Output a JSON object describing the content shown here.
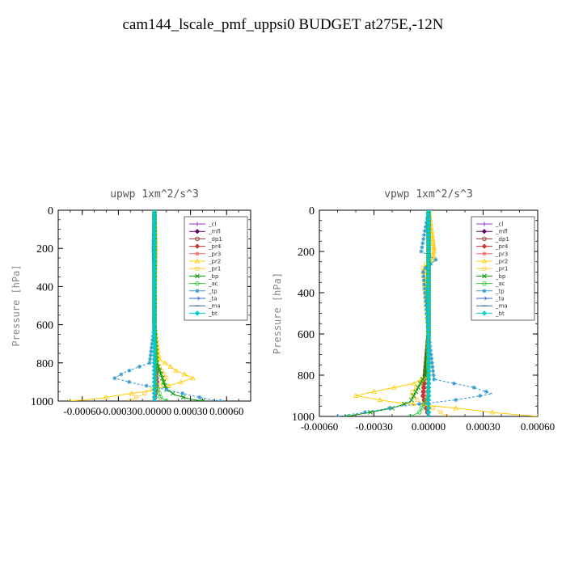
{
  "page": {
    "title": "cam144_lscale_pmf_uppsi0  BUDGET at275E,-12N"
  },
  "chart_data": [
    {
      "type": "line",
      "title": "upwp   1xm^2/s^3",
      "ylabel": "Pressure [hPa]",
      "xlabel": "",
      "xlim": [
        -0.0008,
        0.0008
      ],
      "ylim": [
        1000,
        0
      ],
      "x_ticks": [
        -0.0006,
        -0.0003,
        0.0,
        0.0003,
        0.0006
      ],
      "x_tick_labels": [
        "-0.00060",
        "-0.00030",
        "0.00000",
        "0.00030",
        "0.00060"
      ],
      "y_ticks": [
        0,
        200,
        400,
        600,
        800,
        1000
      ],
      "y_tick_labels": [
        "0",
        "200",
        "400",
        "600",
        "800",
        "1000"
      ],
      "legend_position": "top-right",
      "series": [
        {
          "name": "_cl",
          "color": "#9933cc",
          "marker": "plus",
          "x": [
            0,
            0,
            0,
            0,
            0,
            0,
            0
          ],
          "y": [
            0,
            200,
            400,
            600,
            800,
            900,
            1000
          ]
        },
        {
          "name": "_mfl",
          "color": "#660066",
          "marker": "diamond",
          "x": [
            0,
            0,
            0,
            0,
            0,
            0,
            0
          ],
          "y": [
            0,
            200,
            400,
            600,
            800,
            900,
            1000
          ]
        },
        {
          "name": "_dp1",
          "color": "#993333",
          "marker": "circle",
          "x": [
            0,
            0,
            0,
            0,
            1e-05,
            2e-05,
            0
          ],
          "y": [
            0,
            200,
            400,
            600,
            800,
            900,
            1000
          ]
        },
        {
          "name": "_pr4",
          "color": "#cc3333",
          "marker": "diamond",
          "x": [
            0,
            0,
            0,
            0,
            1e-05,
            2e-05,
            0
          ],
          "y": [
            0,
            200,
            400,
            600,
            800,
            900,
            1000
          ]
        },
        {
          "name": "_pr3",
          "color": "#ff6666",
          "marker": "star",
          "x": [
            0,
            0,
            0,
            0,
            0,
            1e-05,
            0
          ],
          "y": [
            0,
            200,
            400,
            600,
            800,
            900,
            1000
          ]
        },
        {
          "name": "_pr2",
          "color": "#ffcc00",
          "marker": "triangle",
          "x": [
            0,
            1e-05,
            1e-05,
            0,
            4e-05,
            0.00018,
            0.00032,
            0.00012,
            -8e-05,
            -0.0003,
            -0.00045,
            -0.0006,
            -0.0007
          ],
          "y": [
            0,
            180,
            220,
            600,
            780,
            840,
            880,
            920,
            950,
            970,
            985,
            995,
            1000
          ]
        },
        {
          "name": "_pr1",
          "color": "#ffcc33",
          "marker": "square",
          "x": [
            0,
            1e-05,
            0,
            0,
            2e-05,
            0.0001,
            5e-05,
            -5e-05,
            -0.00015,
            -0.0002
          ],
          "y": [
            0,
            200,
            400,
            600,
            800,
            880,
            920,
            950,
            980,
            1000
          ],
          "dashed": true
        },
        {
          "name": "_bp",
          "color": "#009900",
          "marker": "x",
          "x": [
            0,
            0,
            0,
            0,
            2e-05,
            0.0001,
            0.00018,
            0.0003,
            0.0004
          ],
          "y": [
            0,
            200,
            400,
            600,
            800,
            940,
            970,
            990,
            1000
          ]
        },
        {
          "name": "_ac",
          "color": "#33cc33",
          "marker": "circle",
          "x": [
            0,
            0,
            0,
            0,
            1e-05,
            5e-05,
            0.0001
          ],
          "y": [
            0,
            200,
            400,
            600,
            900,
            980,
            1000
          ]
        },
        {
          "name": "_tp",
          "color": "#3399cc",
          "marker": "star",
          "x": [
            0,
            -1e-05,
            0,
            0,
            -4e-05,
            -0.00025,
            -0.00033,
            -0.00015,
            0.0001,
            0.0003,
            0.00045,
            0.00055
          ],
          "y": [
            0,
            200,
            400,
            600,
            800,
            850,
            880,
            910,
            940,
            970,
            990,
            1000
          ],
          "dashed": true
        },
        {
          "name": "_ta",
          "color": "#3366cc",
          "marker": "arrow",
          "x": [
            0,
            0,
            0,
            0,
            0,
            0,
            0
          ],
          "y": [
            0,
            200,
            400,
            600,
            800,
            900,
            1000
          ]
        },
        {
          "name": "_ma",
          "color": "#336699",
          "marker": "dash",
          "x": [
            0,
            0,
            0,
            0,
            0,
            0,
            0
          ],
          "y": [
            0,
            200,
            400,
            600,
            800,
            900,
            1000
          ]
        },
        {
          "name": "_bt",
          "color": "#00cccc",
          "marker": "diamond",
          "x": [
            0,
            0,
            0,
            0,
            0,
            0,
            0
          ],
          "y": [
            0,
            200,
            400,
            600,
            800,
            900,
            1000
          ]
        }
      ]
    },
    {
      "type": "line",
      "title": "vpwp   1xm^2/s^3",
      "ylabel": "Pressure [hPa]",
      "xlabel": "",
      "xlim": [
        -0.0006,
        0.0006
      ],
      "ylim": [
        1000,
        0
      ],
      "x_ticks": [
        -0.0006,
        -0.0003,
        0.0,
        0.0003,
        0.0006
      ],
      "x_tick_labels": [
        "-0.00060",
        "-0.00030",
        "0.00000",
        "0.00030",
        "0.00060"
      ],
      "y_ticks": [
        0,
        200,
        400,
        600,
        800,
        1000
      ],
      "y_tick_labels": [
        "0",
        "200",
        "400",
        "600",
        "800",
        "1000"
      ],
      "legend_position": "top-right",
      "series": [
        {
          "name": "_cl",
          "color": "#9933cc",
          "marker": "plus",
          "x": [
            0,
            0,
            0,
            0,
            0,
            0,
            0
          ],
          "y": [
            0,
            200,
            400,
            600,
            800,
            900,
            1000
          ]
        },
        {
          "name": "_mfl",
          "color": "#660066",
          "marker": "diamond",
          "x": [
            0,
            0,
            0,
            0,
            0,
            0,
            0
          ],
          "y": [
            0,
            200,
            400,
            600,
            800,
            900,
            1000
          ]
        },
        {
          "name": "_dp1",
          "color": "#993333",
          "marker": "circle",
          "x": [
            0,
            0,
            0,
            0,
            -2e-05,
            -3e-05,
            0
          ],
          "y": [
            0,
            200,
            400,
            600,
            800,
            900,
            1000
          ]
        },
        {
          "name": "_pr4",
          "color": "#cc3333",
          "marker": "diamond",
          "x": [
            0,
            0,
            0,
            0,
            -2e-05,
            -3e-05,
            0
          ],
          "y": [
            0,
            200,
            400,
            600,
            800,
            900,
            1000
          ]
        },
        {
          "name": "_pr3",
          "color": "#ff6666",
          "marker": "star",
          "x": [
            0,
            0,
            0,
            0,
            0,
            -1e-05,
            0
          ],
          "y": [
            0,
            200,
            400,
            600,
            800,
            900,
            1000
          ]
        },
        {
          "name": "_pr2",
          "color": "#ffcc00",
          "marker": "triangle",
          "x": [
            0,
            3e-05,
            3e-05,
            -3e-05,
            0,
            0,
            -8e-05,
            -0.0003,
            -0.0004,
            -0.0002,
            0.00015,
            0.0004,
            0.0006
          ],
          "y": [
            0,
            180,
            230,
            290,
            600,
            800,
            840,
            880,
            900,
            930,
            960,
            985,
            1000
          ]
        },
        {
          "name": "_pr1",
          "color": "#ffcc33",
          "marker": "square",
          "x": [
            0,
            3e-05,
            -3e-05,
            0,
            0,
            -0.0001,
            -5e-05,
            5e-05,
            0.0001
          ],
          "y": [
            0,
            200,
            280,
            400,
            800,
            890,
            930,
            970,
            1000
          ],
          "dashed": true
        },
        {
          "name": "_bp",
          "color": "#009900",
          "marker": "x",
          "x": [
            0,
            0,
            0,
            0,
            -2e-05,
            -0.0001,
            -0.0002,
            -0.00035,
            -0.00045
          ],
          "y": [
            0,
            200,
            400,
            600,
            800,
            930,
            960,
            985,
            1000
          ]
        },
        {
          "name": "_ac",
          "color": "#33cc33",
          "marker": "circle",
          "x": [
            0,
            0,
            0,
            0,
            0,
            -5e-05,
            -0.0001
          ],
          "y": [
            0,
            200,
            400,
            600,
            900,
            980,
            1000
          ]
        },
        {
          "name": "_tp",
          "color": "#3399cc",
          "marker": "star",
          "x": [
            0,
            -4e-05,
            4e-05,
            -3e-05,
            0,
            3e-05,
            0.00025,
            0.00035,
            0.00015,
            -0.00015,
            -0.00035,
            -0.0005
          ],
          "y": [
            0,
            200,
            240,
            290,
            600,
            820,
            860,
            890,
            920,
            950,
            980,
            1000
          ],
          "dashed": true
        },
        {
          "name": "_ta",
          "color": "#3366cc",
          "marker": "arrow",
          "x": [
            0,
            0,
            0,
            0,
            0,
            0,
            0
          ],
          "y": [
            0,
            200,
            400,
            600,
            800,
            900,
            1000
          ]
        },
        {
          "name": "_ma",
          "color": "#336699",
          "marker": "dash",
          "x": [
            0,
            0,
            0,
            0,
            0,
            0,
            0
          ],
          "y": [
            0,
            200,
            400,
            600,
            800,
            900,
            1000
          ]
        },
        {
          "name": "_bt",
          "color": "#00cccc",
          "marker": "diamond",
          "x": [
            0,
            0,
            0,
            0,
            0,
            0,
            0
          ],
          "y": [
            0,
            200,
            400,
            600,
            800,
            900,
            1000
          ]
        }
      ]
    }
  ]
}
